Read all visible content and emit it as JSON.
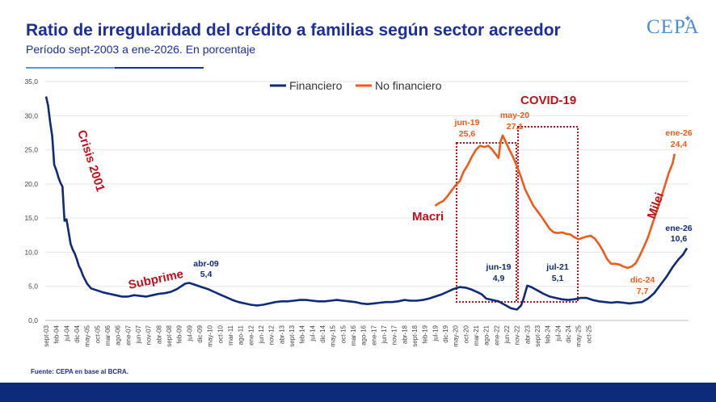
{
  "header": {
    "title": "Ratio de irregularidad del crédito a familias según sector acreedor",
    "subtitle": "Período sept-2003 a ene-2026. En porcentaje",
    "logo": "CEPA"
  },
  "source": "Fuente: CEPA en base al BCRA.",
  "colors": {
    "financiero": "#0e2a7a",
    "no_financiero": "#f05a1a",
    "annotation": "#c0101a",
    "title": "#1a2f9a"
  },
  "chart_data": {
    "type": "line",
    "title": "Ratio de irregularidad del crédito a familias según sector acreedor",
    "xlabel": "",
    "ylabel": "",
    "ylim": [
      0,
      35
    ],
    "yticks": [
      "0,0",
      "5,0",
      "10,0",
      "15,0",
      "20,0",
      "25,0",
      "30,0",
      "35,0"
    ],
    "xticks": [
      "sept-03",
      "feb-04",
      "jul-04",
      "dic-04",
      "may-05",
      "oct-05",
      "mar-06",
      "ago-06",
      "ene-07",
      "jun-07",
      "nov-07",
      "abr-08",
      "sept-08",
      "feb-09",
      "jul-09",
      "dic-09",
      "may-10",
      "oct-10",
      "mar-11",
      "ago-11",
      "ene-12",
      "jun-12",
      "nov-12",
      "abr-13",
      "sept-13",
      "feb-14",
      "jul-14",
      "dic-14",
      "may-15",
      "oct-15",
      "mar-16",
      "ago-16",
      "ene-17",
      "jun-17",
      "nov-17",
      "abr-18",
      "sept-18",
      "feb-19",
      "jul-19",
      "dic-19",
      "may-20",
      "oct-20",
      "mar-21",
      "ago-21",
      "ene-22",
      "jun-22",
      "nov-22",
      "abr-23",
      "sept-23",
      "feb-24",
      "jul-24",
      "dic-24",
      "may-25",
      "oct-25"
    ],
    "legend": [
      "Financiero",
      "No financiero"
    ],
    "legend_position": "top-center",
    "series": [
      {
        "name": "Financiero",
        "points": [
          [
            0,
            32.8
          ],
          [
            1,
            31.5
          ],
          [
            2,
            29
          ],
          [
            3,
            27
          ],
          [
            4,
            22.8
          ],
          [
            5,
            22
          ],
          [
            6,
            21
          ],
          [
            7,
            20.2
          ],
          [
            8,
            19.6
          ],
          [
            9,
            14.6
          ],
          [
            10,
            14.8
          ],
          [
            11,
            13
          ],
          [
            12,
            11.2
          ],
          [
            13,
            10.4
          ],
          [
            14,
            9.8
          ],
          [
            15,
            9.0
          ],
          [
            16,
            8.0
          ],
          [
            17,
            7.4
          ],
          [
            18,
            6.6
          ],
          [
            20,
            5.4
          ],
          [
            22,
            4.7
          ],
          [
            25,
            4.4
          ],
          [
            28,
            4.1
          ],
          [
            31,
            3.9
          ],
          [
            34,
            3.7
          ],
          [
            37,
            3.5
          ],
          [
            40,
            3.5
          ],
          [
            43,
            3.7
          ],
          [
            46,
            3.6
          ],
          [
            49,
            3.5
          ],
          [
            52,
            3.7
          ],
          [
            55,
            3.9
          ],
          [
            58,
            4.0
          ],
          [
            61,
            4.2
          ],
          [
            64,
            4.6
          ],
          [
            67,
            5.2
          ],
          [
            68,
            5.4
          ],
          [
            70,
            5.5
          ],
          [
            73,
            5.2
          ],
          [
            76,
            4.9
          ],
          [
            79,
            4.6
          ],
          [
            82,
            4.2
          ],
          [
            85,
            3.8
          ],
          [
            88,
            3.4
          ],
          [
            91,
            3.0
          ],
          [
            94,
            2.7
          ],
          [
            97,
            2.5
          ],
          [
            100,
            2.3
          ],
          [
            103,
            2.2
          ],
          [
            106,
            2.3
          ],
          [
            109,
            2.5
          ],
          [
            112,
            2.7
          ],
          [
            115,
            2.8
          ],
          [
            118,
            2.8
          ],
          [
            121,
            2.9
          ],
          [
            124,
            3.0
          ],
          [
            127,
            3.0
          ],
          [
            130,
            2.9
          ],
          [
            133,
            2.8
          ],
          [
            136,
            2.8
          ],
          [
            139,
            2.9
          ],
          [
            142,
            3.0
          ],
          [
            145,
            2.9
          ],
          [
            148,
            2.8
          ],
          [
            151,
            2.7
          ],
          [
            154,
            2.5
          ],
          [
            157,
            2.4
          ],
          [
            160,
            2.5
          ],
          [
            163,
            2.6
          ],
          [
            166,
            2.7
          ],
          [
            169,
            2.7
          ],
          [
            172,
            2.8
          ],
          [
            175,
            3.0
          ],
          [
            178,
            2.9
          ],
          [
            181,
            2.9
          ],
          [
            184,
            3.0
          ],
          [
            187,
            3.2
          ],
          [
            190,
            3.5
          ],
          [
            193,
            3.8
          ],
          [
            196,
            4.2
          ],
          [
            199,
            4.6
          ],
          [
            202,
            4.9
          ],
          [
            205,
            4.8
          ],
          [
            208,
            4.5
          ],
          [
            211,
            4.1
          ],
          [
            213,
            3.8
          ],
          [
            215,
            3.2
          ],
          [
            218,
            3.0
          ],
          [
            221,
            2.8
          ],
          [
            224,
            2.3
          ],
          [
            227,
            1.8
          ],
          [
            230,
            1.6
          ],
          [
            232,
            2.2
          ],
          [
            233,
            3.0
          ],
          [
            234,
            4.0
          ],
          [
            235,
            5.1
          ],
          [
            237,
            4.9
          ],
          [
            240,
            4.4
          ],
          [
            243,
            3.9
          ],
          [
            246,
            3.5
          ],
          [
            249,
            3.3
          ],
          [
            252,
            3.1
          ],
          [
            255,
            3.0
          ],
          [
            258,
            3.1
          ],
          [
            261,
            3.3
          ],
          [
            264,
            3.3
          ],
          [
            267,
            3.0
          ],
          [
            270,
            2.8
          ],
          [
            273,
            2.7
          ],
          [
            276,
            2.6
          ],
          [
            279,
            2.7
          ],
          [
            282,
            2.6
          ],
          [
            285,
            2.5
          ],
          [
            288,
            2.6
          ],
          [
            291,
            2.7
          ],
          [
            294,
            3.2
          ],
          [
            297,
            4.0
          ],
          [
            300,
            5.2
          ],
          [
            303,
            6.4
          ],
          [
            306,
            7.8
          ],
          [
            309,
            9.0
          ],
          [
            311,
            9.6
          ],
          [
            313,
            10.6
          ]
        ]
      },
      {
        "name": "No financiero",
        "points": [
          [
            190,
            16.8
          ],
          [
            192,
            17.2
          ],
          [
            194,
            17.5
          ],
          [
            196,
            18.2
          ],
          [
            198,
            19.0
          ],
          [
            200,
            19.8
          ],
          [
            202,
            20.4
          ],
          [
            204,
            21.8
          ],
          [
            206,
            22.8
          ],
          [
            208,
            24.0
          ],
          [
            210,
            25.0
          ],
          [
            212,
            25.6
          ],
          [
            214,
            25.4
          ],
          [
            216,
            25.6
          ],
          [
            218,
            25.0
          ],
          [
            220,
            24.2
          ],
          [
            221,
            23.8
          ],
          [
            222,
            26.2
          ],
          [
            223,
            27.1
          ],
          [
            224,
            26.5
          ],
          [
            226,
            25.2
          ],
          [
            228,
            24.0
          ],
          [
            230,
            22.6
          ],
          [
            232,
            21.0
          ],
          [
            234,
            19.2
          ],
          [
            236,
            18.0
          ],
          [
            238,
            16.8
          ],
          [
            240,
            16.0
          ],
          [
            242,
            15.2
          ],
          [
            244,
            14.3
          ],
          [
            246,
            13.4
          ],
          [
            248,
            12.9
          ],
          [
            250,
            12.8
          ],
          [
            252,
            12.9
          ],
          [
            254,
            12.7
          ],
          [
            256,
            12.6
          ],
          [
            258,
            12.2
          ],
          [
            260,
            11.9
          ],
          [
            262,
            12.1
          ],
          [
            264,
            12.3
          ],
          [
            266,
            12.4
          ],
          [
            268,
            12.0
          ],
          [
            270,
            11.2
          ],
          [
            272,
            10.2
          ],
          [
            274,
            9.0
          ],
          [
            276,
            8.3
          ],
          [
            278,
            8.3
          ],
          [
            280,
            8.2
          ],
          [
            282,
            7.9
          ],
          [
            284,
            7.7
          ],
          [
            286,
            7.9
          ],
          [
            288,
            8.4
          ],
          [
            290,
            9.5
          ],
          [
            292,
            10.8
          ],
          [
            294,
            12.2
          ],
          [
            296,
            14.0
          ],
          [
            298,
            15.8
          ],
          [
            300,
            17.6
          ],
          [
            302,
            19.5
          ],
          [
            304,
            21.5
          ],
          [
            306,
            23.0
          ],
          [
            307,
            24.4
          ]
        ]
      }
    ],
    "annotations": [
      {
        "label": "abr-09",
        "value": "5,4",
        "series": "Financiero"
      },
      {
        "label": "jun-19",
        "value": "4,9",
        "series": "Financiero"
      },
      {
        "label": "jul-21",
        "value": "5,1",
        "series": "Financiero"
      },
      {
        "label": "ene-26",
        "value": "10,6",
        "series": "Financiero"
      },
      {
        "label": "jun-19",
        "value": "25,6",
        "series": "No financiero"
      },
      {
        "label": "may-20",
        "value": "27,1",
        "series": "No financiero"
      },
      {
        "label": "dic-24",
        "value": "7,7",
        "series": "No financiero"
      },
      {
        "label": "ene-26",
        "value": "24,4",
        "series": "No financiero"
      }
    ],
    "events": [
      "Crisis 2001",
      "Subprime",
      "Macri",
      "COVID-19",
      "Milei"
    ]
  }
}
